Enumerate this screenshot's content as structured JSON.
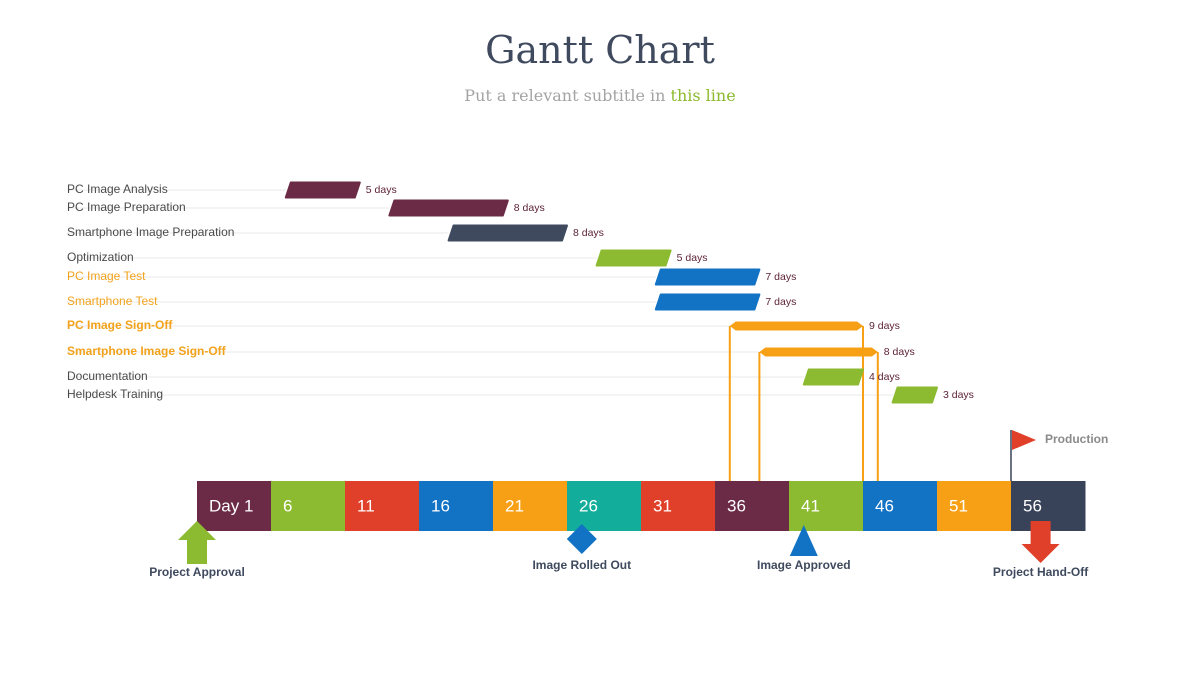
{
  "header": {
    "title": "Gantt Chart",
    "subtitle_main": "Put a relevant subtitle in ",
    "subtitle_highlight": "this line"
  },
  "colors": {
    "maroon": "#6b2a45",
    "green": "#8cba30",
    "red": "#e0402a",
    "blue": "#1272c4",
    "orange": "#f7a015",
    "teal": "#13ad9b",
    "navy": "#38435a",
    "text_gray": "#4a4a4a",
    "duration": "#5e2338",
    "orange_label": "#f2a21b"
  },
  "chart_data": {
    "type": "gantt",
    "tasks": [
      {
        "name": "PC Image Analysis",
        "start": 7,
        "days": 5,
        "duration_label": "5 days",
        "color": "#6b2a45",
        "label_color": "#4a4a4a",
        "bold": false
      },
      {
        "name": "PC Image Preparation",
        "start": 14,
        "days": 8,
        "duration_label": "8 days",
        "color": "#6b2a45",
        "label_color": "#4a4a4a",
        "bold": false
      },
      {
        "name": "Smartphone Image Preparation",
        "start": 18,
        "days": 8,
        "duration_label": "8 days",
        "color": "#3f4a5e",
        "label_color": "#4a4a4a",
        "bold": false
      },
      {
        "name": "Optimization",
        "start": 28,
        "days": 5,
        "duration_label": "5 days",
        "color": "#8cba30",
        "label_color": "#4a4a4a",
        "bold": false
      },
      {
        "name": "PC Image Test",
        "start": 32,
        "days": 7,
        "duration_label": "7 days",
        "color": "#1272c4",
        "label_color": "#f2a21b",
        "bold": false
      },
      {
        "name": "Smartphone Test",
        "start": 32,
        "days": 7,
        "duration_label": "7 days",
        "color": "#1272c4",
        "label_color": "#f2a21b",
        "bold": false
      },
      {
        "name": "PC Image Sign-Off",
        "start": 37,
        "days": 9,
        "duration_label": "9 days",
        "color": "#f7a015",
        "label_color": "#f2a21b",
        "bold": true,
        "style": "arrow"
      },
      {
        "name": "Smartphone Image Sign-Off",
        "start": 39,
        "days": 8,
        "duration_label": "8 days",
        "color": "#f7a015",
        "label_color": "#f2a21b",
        "bold": true,
        "style": "arrow"
      },
      {
        "name": "Documentation",
        "start": 42,
        "days": 4,
        "duration_label": "4 days",
        "color": "#8cba30",
        "label_color": "#4a4a4a",
        "bold": false
      },
      {
        "name": "Helpdesk Training",
        "start": 48,
        "days": 3,
        "duration_label": "3 days",
        "color": "#8cba30",
        "label_color": "#4a4a4a",
        "bold": false
      }
    ],
    "timeline": [
      {
        "label": "Day 1",
        "color": "#6b2a45"
      },
      {
        "label": "6",
        "color": "#8cba30"
      },
      {
        "label": "11",
        "color": "#e0402a"
      },
      {
        "label": "16",
        "color": "#1272c4"
      },
      {
        "label": "21",
        "color": "#f7a015"
      },
      {
        "label": "26",
        "color": "#13ad9b"
      },
      {
        "label": "31",
        "color": "#e0402a"
      },
      {
        "label": "36",
        "color": "#6b2a45"
      },
      {
        "label": "41",
        "color": "#8cba30"
      },
      {
        "label": "46",
        "color": "#1272c4"
      },
      {
        "label": "51",
        "color": "#f7a015"
      },
      {
        "label": "56",
        "color": "#38435a"
      }
    ],
    "milestones": [
      {
        "label": "Project Approval",
        "day": 1,
        "shape": "up-arrow",
        "color": "#8cba30"
      },
      {
        "label": "Image Rolled Out",
        "day": 27,
        "shape": "diamond",
        "color": "#1272c4"
      },
      {
        "label": "Image Approved",
        "day": 42,
        "shape": "triangle",
        "color": "#1272c4"
      },
      {
        "label": "Project Hand-Off",
        "day": 58,
        "shape": "down-arrow",
        "color": "#e0402a"
      }
    ],
    "flag": {
      "label": "Production",
      "day": 56,
      "color": "#e0402a"
    },
    "day_range": [
      1,
      61
    ]
  }
}
